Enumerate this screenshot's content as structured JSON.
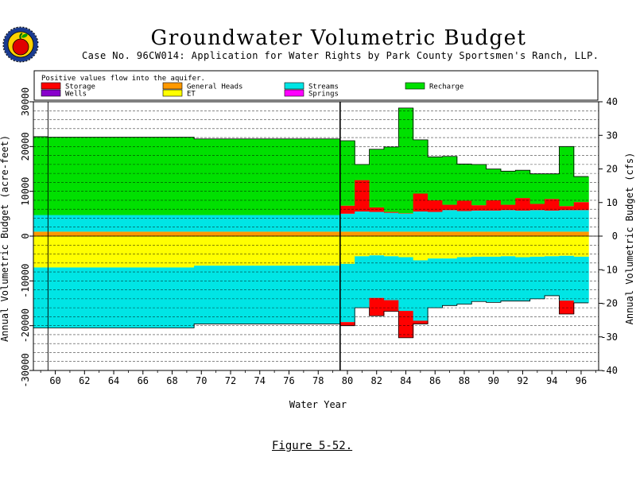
{
  "header": {
    "title": "Groundwater Volumetric Budget",
    "subtitle": "Case No. 96CW014: Application for Water Rights by Park County Sportsmen's Ranch, LLP.",
    "figure_caption": "Figure 5-52."
  },
  "logo": {
    "icon": "apple-seal-logo"
  },
  "legend": {
    "note": "Positive values flow into the aquifer.",
    "placement": "top",
    "items": [
      {
        "label": "Storage",
        "color": "#ff0000"
      },
      {
        "label": "Wells",
        "color": "#8800cc"
      },
      {
        "label": "General Heads",
        "color": "#ff9900"
      },
      {
        "label": "ET",
        "color": "#ffff00"
      },
      {
        "label": "Streams",
        "color": "#00e5e5"
      },
      {
        "label": "Springs",
        "color": "#ff00ff"
      },
      {
        "label": "Recharge",
        "color": "#00e000"
      }
    ]
  },
  "chart_data": {
    "type": "area",
    "title": "Groundwater Volumetric Budget",
    "subtitle": "Case No. 96CW014: Application for Water Rights by Park County Sportsmen's Ranch, LLP.",
    "xlabel": "Water Year",
    "ylabel": "Annual Volumetric Budget (acre-feet)",
    "y2label": "Annual Volumetric Budget (cfs)",
    "xlim": [
      1958.5,
      1997.2
    ],
    "ylim": [
      -30000,
      30000
    ],
    "y2lim": [
      -40,
      40
    ],
    "x_ticks": [
      60,
      62,
      64,
      66,
      68,
      70,
      72,
      74,
      76,
      78,
      80,
      82,
      84,
      86,
      88,
      90,
      92,
      94,
      96
    ],
    "y_ticks": [
      -30000,
      -20000,
      -10000,
      0,
      10000,
      20000,
      30000
    ],
    "y_tick_labels": [
      "-30000",
      "-20000",
      "-10000",
      "0",
      "10000",
      "20000",
      "30000"
    ],
    "y2_ticks": [
      -40,
      -30,
      -20,
      -10,
      0,
      10,
      20,
      30,
      40
    ],
    "grid": "horizontal dashed",
    "vertical_markers": [
      1959.5,
      1979.5
    ],
    "years": [
      1959,
      1960,
      1961,
      1962,
      1963,
      1964,
      1965,
      1966,
      1967,
      1968,
      1969,
      1970,
      1971,
      1972,
      1973,
      1974,
      1975,
      1976,
      1977,
      1978,
      1979,
      1980,
      1981,
      1982,
      1983,
      1984,
      1985,
      1986,
      1987,
      1988,
      1989,
      1990,
      1991,
      1992,
      1993,
      1994,
      1995,
      1996
    ],
    "series": [
      {
        "name": "General Heads",
        "color": "#ff9900",
        "values": [
          1000,
          1000,
          1000,
          1000,
          1000,
          1000,
          1000,
          1000,
          1000,
          1000,
          1000,
          1000,
          1000,
          1000,
          1000,
          1000,
          1000,
          1000,
          1000,
          1000,
          1000,
          1000,
          1000,
          1000,
          1000,
          1000,
          1000,
          1000,
          1000,
          1000,
          1000,
          1000,
          1000,
          1000,
          1000,
          1000,
          1000,
          1000
        ]
      },
      {
        "name": "Streams",
        "color": "#00e5e5",
        "values": [
          3700,
          3700,
          3700,
          3700,
          3700,
          3700,
          3700,
          3700,
          3700,
          3700,
          3700,
          3700,
          3700,
          3700,
          3700,
          3700,
          3700,
          3700,
          3700,
          3700,
          3700,
          4000,
          4500,
          4400,
          4200,
          4000,
          4500,
          4400,
          4800,
          4600,
          4700,
          4700,
          4800,
          4700,
          4800,
          4700,
          4800,
          4800
        ]
      },
      {
        "name": "Storage",
        "color": "#ff0000",
        "values": [
          0,
          0,
          0,
          0,
          0,
          0,
          0,
          0,
          0,
          0,
          0,
          0,
          0,
          0,
          0,
          0,
          0,
          0,
          0,
          0,
          0,
          1800,
          7000,
          1000,
          200,
          100,
          4000,
          2600,
          1200,
          2300,
          1200,
          2300,
          1200,
          2800,
          1400,
          2600,
          900,
          1800
        ]
      },
      {
        "name": "Recharge",
        "color": "#00e000",
        "values": [
          17500,
          17400,
          17400,
          17400,
          17400,
          17400,
          17400,
          17400,
          17400,
          17400,
          17400,
          17000,
          17000,
          17000,
          17000,
          17000,
          17000,
          17000,
          17000,
          17000,
          17000,
          14500,
          3500,
          13000,
          14500,
          23500,
          12000,
          9700,
          10800,
          8200,
          9100,
          7000,
          7500,
          6200,
          6700,
          5600,
          13300,
          5700
        ]
      },
      {
        "name": "ET",
        "color": "#ffff00",
        "values": [
          -7000,
          -7000,
          -7000,
          -7000,
          -7000,
          -7000,
          -7000,
          -7000,
          -7000,
          -7000,
          -7000,
          -6600,
          -6600,
          -6600,
          -6600,
          -6600,
          -6600,
          -6600,
          -6600,
          -6600,
          -6600,
          -6200,
          -4500,
          -4300,
          -4500,
          -4700,
          -5400,
          -5000,
          -5000,
          -4700,
          -4600,
          -4600,
          -4500,
          -4700,
          -4600,
          -4500,
          -4400,
          -4600
        ]
      },
      {
        "name": "Streams (outflow)",
        "color": "#00e5e5",
        "values": [
          -13500,
          -13500,
          -13500,
          -13500,
          -13500,
          -13500,
          -13500,
          -13500,
          -13500,
          -13500,
          -13500,
          -13000,
          -13000,
          -13000,
          -13000,
          -13000,
          -13000,
          -13000,
          -13000,
          -13000,
          -13000,
          -13000,
          -11500,
          -9500,
          -9800,
          -12000,
          -13500,
          -11000,
          -10500,
          -10500,
          -10000,
          -10200,
          -10000,
          -9800,
          -9400,
          -8800,
          -10000,
          -10300
        ]
      },
      {
        "name": "Storage (outflow)",
        "color": "#ff0000",
        "values": [
          0,
          0,
          0,
          0,
          0,
          0,
          0,
          0,
          0,
          0,
          0,
          0,
          0,
          0,
          0,
          0,
          0,
          0,
          0,
          0,
          0,
          -800,
          0,
          -4000,
          -2500,
          -6000,
          -700,
          0,
          0,
          0,
          0,
          0,
          0,
          0,
          0,
          0,
          -3000,
          0
        ]
      }
    ]
  }
}
